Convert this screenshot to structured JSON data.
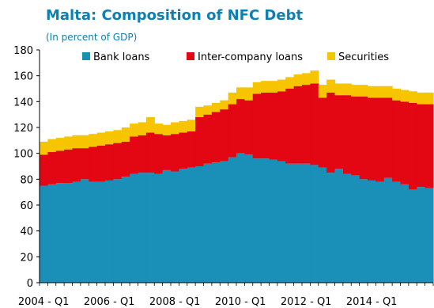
{
  "chart_data": {
    "type": "area",
    "stacked": true,
    "title": "Malta: Composition of NFC Debt",
    "subtitle": "(In percent of GDP)",
    "xlabel": "",
    "ylabel": "",
    "ylim": [
      0,
      180
    ],
    "yticks": [
      0,
      20,
      40,
      60,
      80,
      100,
      120,
      140,
      160,
      180
    ],
    "x_tick_labels": [
      "2004 - Q1",
      "2006 - Q1",
      "2008 - Q1",
      "2010 - Q1",
      "2012 - Q1",
      "2014 - Q1"
    ],
    "x_tick_index": [
      0,
      8,
      16,
      24,
      32,
      40
    ],
    "grid": false,
    "legend": "top",
    "series": [
      {
        "name": "Bank loans",
        "color": "#1a8fb8",
        "values": [
          75,
          76,
          77,
          77,
          78,
          80,
          78,
          78,
          79,
          80,
          82,
          84,
          85,
          85,
          84,
          87,
          86,
          88,
          89,
          90,
          92,
          93,
          94,
          97,
          100,
          99,
          96,
          96,
          95,
          94,
          92,
          92,
          92,
          91,
          89,
          85,
          88,
          84,
          83,
          80,
          79,
          78,
          81,
          78,
          76,
          72,
          74,
          73
        ]
      },
      {
        "name": "Inter-company loans",
        "color": "#e30613",
        "values": [
          24,
          25,
          25,
          26,
          26,
          24,
          27,
          28,
          28,
          28,
          27,
          29,
          29,
          31,
          31,
          27,
          29,
          28,
          28,
          38,
          38,
          39,
          40,
          41,
          42,
          42,
          50,
          51,
          52,
          54,
          58,
          60,
          61,
          63,
          54,
          62,
          57,
          61,
          61,
          64,
          64,
          65,
          62,
          63,
          64,
          67,
          64,
          65
        ]
      },
      {
        "name": "Securities",
        "color": "#f7c500",
        "values": [
          10,
          10,
          10,
          10,
          10,
          10,
          10,
          10,
          10,
          10,
          11,
          10,
          10,
          12,
          8,
          8,
          9,
          9,
          9,
          8,
          7,
          7,
          7,
          9,
          9,
          10,
          9,
          9,
          9,
          9,
          9,
          9,
          9,
          10,
          10,
          10,
          9,
          9,
          9,
          9,
          9,
          9,
          9,
          9,
          9,
          9,
          9,
          9
        ]
      }
    ]
  }
}
